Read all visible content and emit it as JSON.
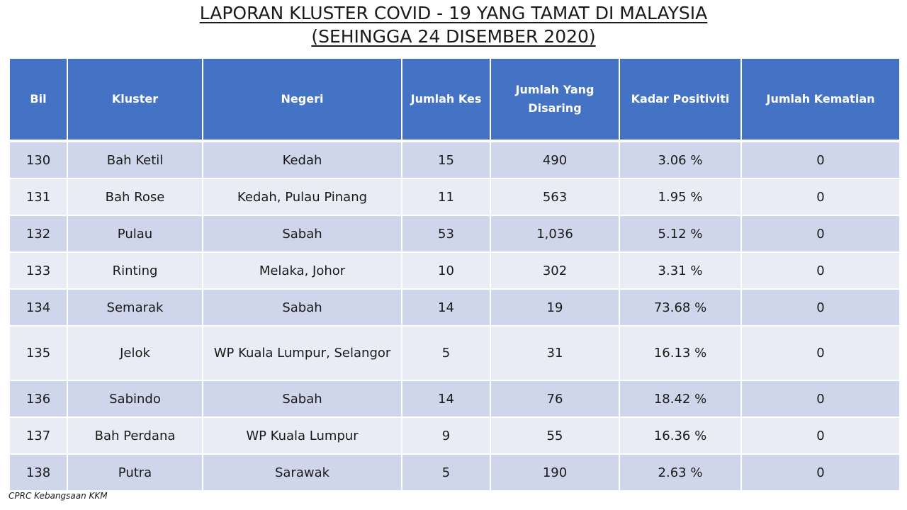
{
  "title": {
    "line1": "LAPORAN KLUSTER COVID - 19 YANG TAMAT DI MALAYSIA",
    "line2": "(SEHINGGA 24 DISEMBER 2020)"
  },
  "table": {
    "headers": [
      "Bil",
      "Kluster",
      "Negeri",
      "Jumlah Kes",
      "Jumlah Yang Disaring",
      "Kadar Positiviti",
      "Jumlah Kematian"
    ],
    "rows": [
      [
        "130",
        "Bah Ketil",
        "Kedah",
        "15",
        "490",
        "3.06 %",
        "0"
      ],
      [
        "131",
        "Bah Rose",
        "Kedah, Pulau Pinang",
        "11",
        "563",
        "1.95 %",
        "0"
      ],
      [
        "132",
        "Pulau",
        "Sabah",
        "53",
        "1,036",
        "5.12 %",
        "0"
      ],
      [
        "133",
        "Rinting",
        "Melaka, Johor",
        "10",
        "302",
        "3.31 %",
        "0"
      ],
      [
        "134",
        "Semarak",
        "Sabah",
        "14",
        "19",
        "73.68 %",
        "0"
      ],
      [
        "135",
        "Jelok",
        "WP Kuala Lumpur, Selangor",
        "5",
        "31",
        "16.13 %",
        "0"
      ],
      [
        "136",
        "Sabindo",
        "Sabah",
        "14",
        "76",
        "18.42 %",
        "0"
      ],
      [
        "137",
        "Bah Perdana",
        "WP Kuala Lumpur",
        "9",
        "55",
        "16.36 %",
        "0"
      ],
      [
        "138",
        "Putra",
        "Sarawak",
        "5",
        "190",
        "2.63 %",
        "0"
      ]
    ]
  },
  "footer": "CPRC Kebangsaan KKM",
  "colors": {
    "header_bg": "#4472c4",
    "row_odd": "#cfd5ea",
    "row_even": "#e9ebf5"
  }
}
